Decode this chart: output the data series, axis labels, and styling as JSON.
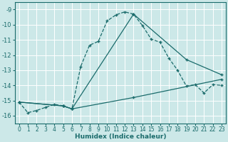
{
  "xlabel": "Humidex (Indice chaleur)",
  "background_color": "#cce8e8",
  "grid_color": "#ffffff",
  "line_color": "#1a6b6b",
  "xlim": [
    -0.5,
    23.5
  ],
  "ylim": [
    -16.5,
    -8.5
  ],
  "yticks": [
    -16,
    -15,
    -14,
    -13,
    -12,
    -11,
    -10,
    -9
  ],
  "xticks": [
    0,
    1,
    2,
    3,
    4,
    5,
    6,
    7,
    8,
    9,
    10,
    11,
    12,
    13,
    14,
    15,
    16,
    17,
    18,
    19,
    20,
    21,
    22,
    23
  ],
  "series": [
    {
      "x": [
        0,
        1,
        2,
        3,
        4,
        5,
        6,
        7,
        8,
        9,
        10,
        11,
        12,
        13,
        14,
        15,
        16,
        17,
        18,
        19,
        20,
        21,
        22,
        23
      ],
      "y": [
        -15.1,
        -15.8,
        -15.65,
        -15.45,
        -15.25,
        -15.35,
        -15.55,
        -12.75,
        -11.35,
        -11.1,
        -9.75,
        -9.35,
        -9.15,
        -9.3,
        -10.05,
        -10.95,
        -11.15,
        -12.2,
        -13.0,
        -14.05,
        -13.95,
        -14.5,
        -13.95,
        -14.0
      ]
    },
    {
      "x": [
        0,
        5,
        6,
        13,
        19,
        23
      ],
      "y": [
        -15.1,
        -15.35,
        -15.55,
        -9.3,
        -12.3,
        -13.3
      ]
    },
    {
      "x": [
        0,
        5,
        6,
        13,
        23
      ],
      "y": [
        -15.1,
        -15.35,
        -15.55,
        -14.8,
        -13.6
      ]
    }
  ]
}
